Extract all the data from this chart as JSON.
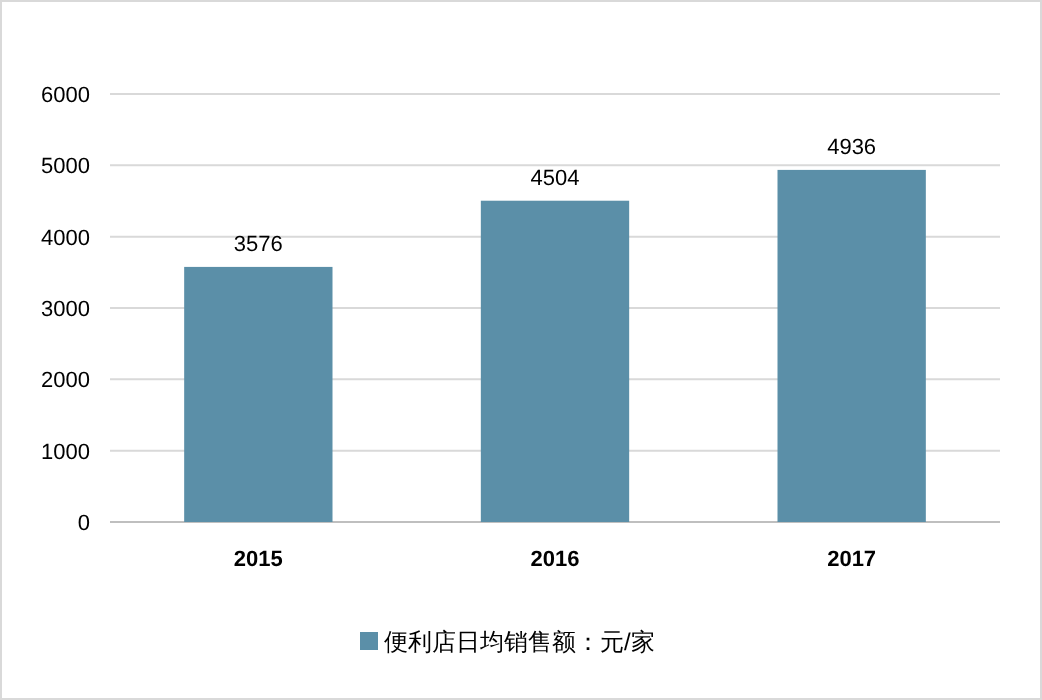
{
  "chart_data": {
    "type": "bar",
    "categories": [
      "2015",
      "2016",
      "2017"
    ],
    "series": [
      {
        "name": "便利店日均销售额：元/家",
        "color": "#5b8fa8",
        "values": [
          3576,
          4504,
          4936
        ]
      }
    ],
    "ylim": [
      0,
      6000
    ],
    "yticks": [
      0,
      1000,
      2000,
      3000,
      4000,
      5000,
      6000
    ],
    "grid": "y",
    "legend": "bottom",
    "data_labels": true
  }
}
